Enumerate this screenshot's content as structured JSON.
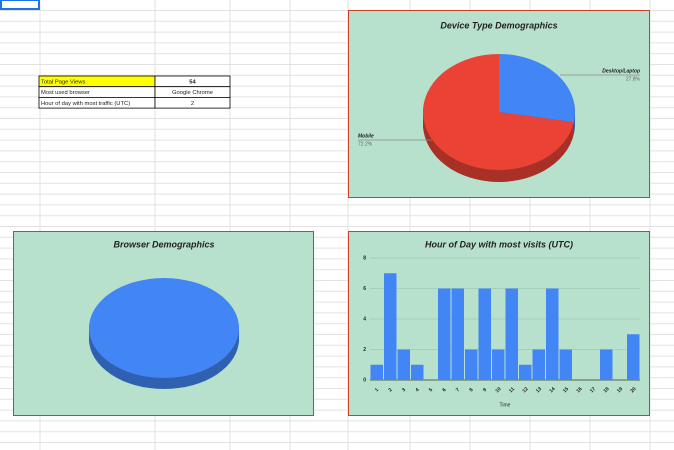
{
  "table": {
    "rows": [
      [
        "Total Page Views",
        54
      ],
      [
        "Most used browser",
        "Google Chrome"
      ],
      [
        "Hour of day with most traffic (UTC)",
        2
      ]
    ]
  },
  "chart_data": [
    {
      "type": "pie",
      "title": "Device Type Demographics",
      "categories": [
        "Desktop/Laptop",
        "Mobile"
      ],
      "values": [
        27.8,
        72.2
      ],
      "value_labels": [
        "27.8%",
        "72.2%"
      ],
      "colors": [
        "#4285f4",
        "#ea4335"
      ]
    },
    {
      "type": "pie",
      "title": "Browser Demographics",
      "values": [
        100
      ],
      "colors": [
        "#4285f4"
      ]
    },
    {
      "type": "bar",
      "title": "Hour of Day with most visits (UTC)",
      "categories": [
        "1",
        "2",
        "3",
        "4",
        "5",
        "6",
        "7",
        "8",
        "9",
        "10",
        "11",
        "12",
        "13",
        "14",
        "15",
        "16",
        "17",
        "18",
        "19",
        "20"
      ],
      "values": [
        1,
        7,
        2,
        1,
        0,
        6,
        6,
        2,
        6,
        2,
        6,
        1,
        2,
        6,
        2,
        0,
        0,
        2,
        0,
        3
      ],
      "color": "#4285f4",
      "ylim": [
        0,
        8
      ],
      "yticks": [
        0,
        2,
        4,
        6,
        8
      ],
      "xlabel": "Time",
      "grid": true
    }
  ]
}
